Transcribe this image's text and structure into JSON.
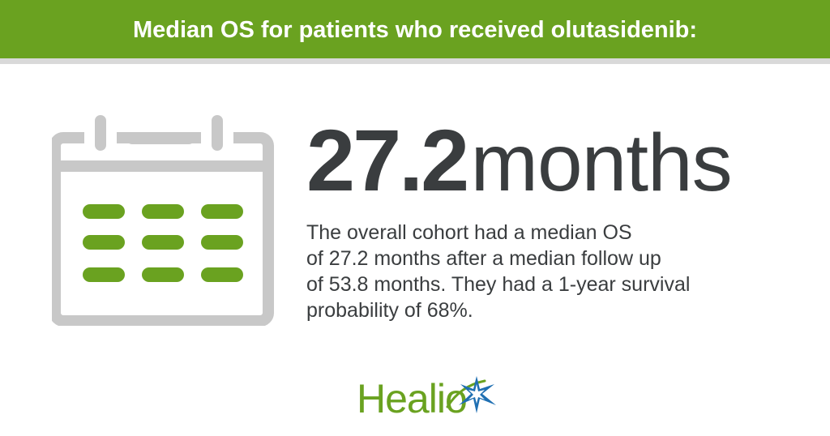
{
  "header": {
    "title": "Median OS for patients who received olutasidenib:"
  },
  "stat": {
    "number": "27.2",
    "unit": "months"
  },
  "description": {
    "lines": [
      "The overall cohort had a median OS",
      "of 27.2 months after a median follow up",
      "of 53.8 months. They had a 1-year survival",
      "probability of 68%."
    ]
  },
  "logo": {
    "text": "Healio"
  },
  "icons": {
    "calendar": "calendar-icon",
    "logo_star": "star-icon"
  },
  "colors": {
    "brand_green": "#6aa220",
    "header_border": "#d9d9d9",
    "calendar_gray": "#c8c8c8",
    "text_dark": "#3a3d3f",
    "star_blue": "#1f6fb2"
  }
}
